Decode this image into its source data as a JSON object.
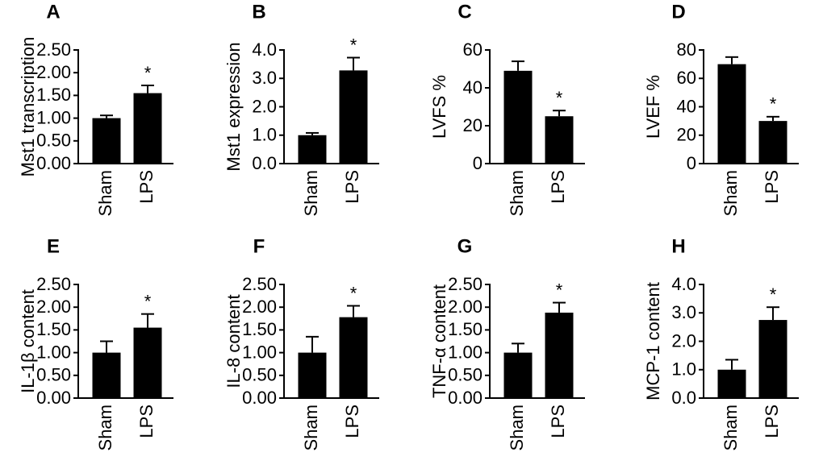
{
  "chart_data": [
    {
      "type": "bar",
      "panel": "A",
      "ylabel": "Mst1 transcription",
      "categories": [
        "Sham",
        "LPS"
      ],
      "values": [
        1.0,
        1.55
      ],
      "errors": [
        0.06,
        0.17
      ],
      "color": "#000000",
      "annotations": [
        {
          "text": "*",
          "category": 1
        }
      ],
      "ylim": [
        0,
        2.5
      ],
      "yticks": [
        {
          "value": 0,
          "label": "0.00"
        },
        {
          "value": 0.5,
          "label": "0.50"
        },
        {
          "value": 1,
          "label": "1.00"
        },
        {
          "value": 1.5,
          "label": "1.50"
        },
        {
          "value": 2,
          "label": "2.00"
        },
        {
          "value": 2.5,
          "label": "2.50"
        }
      ]
    },
    {
      "type": "bar",
      "panel": "B",
      "ylabel": "Mst1 expression",
      "categories": [
        "Sham",
        "LPS"
      ],
      "values": [
        1.0,
        3.28
      ],
      "errors": [
        0.08,
        0.45
      ],
      "color": "#000000",
      "annotations": [
        {
          "text": "*",
          "category": 1
        }
      ],
      "ylim": [
        0,
        4
      ],
      "yticks": [
        {
          "value": 0,
          "label": "0.0"
        },
        {
          "value": 1,
          "label": "1.0"
        },
        {
          "value": 2,
          "label": "2.0"
        },
        {
          "value": 3,
          "label": "3.0"
        },
        {
          "value": 4,
          "label": "4.0"
        }
      ]
    },
    {
      "type": "bar",
      "panel": "C",
      "ylabel": "LVFS %",
      "categories": [
        "Sham",
        "LPS"
      ],
      "values": [
        49,
        25
      ],
      "errors": [
        5,
        3
      ],
      "color": "#000000",
      "annotations": [
        {
          "text": "*",
          "category": 1
        }
      ],
      "ylim": [
        0,
        60
      ],
      "yticks": [
        0,
        20,
        40,
        60
      ]
    },
    {
      "type": "bar",
      "panel": "D",
      "ylabel": "LVEF %",
      "categories": [
        "Sham",
        "LPS"
      ],
      "values": [
        70,
        30
      ],
      "errors": [
        5,
        3
      ],
      "color": "#000000",
      "annotations": [
        {
          "text": "*",
          "category": 1
        }
      ],
      "ylim": [
        0,
        80
      ],
      "yticks": [
        0,
        20,
        40,
        60,
        80
      ]
    },
    {
      "type": "bar",
      "panel": "E",
      "ylabel": "IL-1β content",
      "categories": [
        "Sham",
        "LPS"
      ],
      "values": [
        1.0,
        1.55
      ],
      "errors": [
        0.25,
        0.3
      ],
      "color": "#000000",
      "annotations": [
        {
          "text": "*",
          "category": 1
        }
      ],
      "ylim": [
        0,
        2.5
      ],
      "yticks": [
        {
          "value": 0,
          "label": "0.00"
        },
        {
          "value": 0.5,
          "label": "0.50"
        },
        {
          "value": 1,
          "label": "1.00"
        },
        {
          "value": 1.5,
          "label": "1.50"
        },
        {
          "value": 2,
          "label": "2.00"
        },
        {
          "value": 2.5,
          "label": "2.50"
        }
      ]
    },
    {
      "type": "bar",
      "panel": "F",
      "ylabel": "IL-8 content",
      "categories": [
        "Sham",
        "LPS"
      ],
      "values": [
        1.0,
        1.78
      ],
      "errors": [
        0.35,
        0.25
      ],
      "color": "#000000",
      "annotations": [
        {
          "text": "*",
          "category": 1
        }
      ],
      "ylim": [
        0,
        2.5
      ],
      "yticks": [
        {
          "value": 0,
          "label": "0.00"
        },
        {
          "value": 0.5,
          "label": "0.50"
        },
        {
          "value": 1,
          "label": "1.00"
        },
        {
          "value": 1.5,
          "label": "1.50"
        },
        {
          "value": 2,
          "label": "2.00"
        },
        {
          "value": 2.5,
          "label": "2.50"
        }
      ]
    },
    {
      "type": "bar",
      "panel": "G",
      "ylabel": "TNF-α content",
      "categories": [
        "Sham",
        "LPS"
      ],
      "values": [
        1.0,
        1.88
      ],
      "errors": [
        0.2,
        0.22
      ],
      "color": "#000000",
      "annotations": [
        {
          "text": "*",
          "category": 1
        }
      ],
      "ylim": [
        0,
        2.5
      ],
      "yticks": [
        {
          "value": 0,
          "label": "0.00"
        },
        {
          "value": 0.5,
          "label": "0.50"
        },
        {
          "value": 1,
          "label": "1.00"
        },
        {
          "value": 1.5,
          "label": "1.50"
        },
        {
          "value": 2,
          "label": "2.00"
        },
        {
          "value": 2.5,
          "label": "2.50"
        }
      ]
    },
    {
      "type": "bar",
      "panel": "H",
      "ylabel": "MCP-1 content",
      "categories": [
        "Sham",
        "LPS"
      ],
      "values": [
        1.0,
        2.75
      ],
      "errors": [
        0.35,
        0.45
      ],
      "color": "#000000",
      "annotations": [
        {
          "text": "*",
          "category": 1
        }
      ],
      "ylim": [
        0,
        4
      ],
      "yticks": [
        {
          "value": 0,
          "label": "0.0"
        },
        {
          "value": 1,
          "label": "1.0"
        },
        {
          "value": 2,
          "label": "2.0"
        },
        {
          "value": 3,
          "label": "3.0"
        },
        {
          "value": 4,
          "label": "4.0"
        }
      ]
    }
  ]
}
